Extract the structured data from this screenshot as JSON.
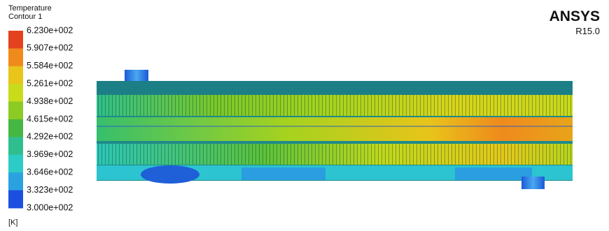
{
  "legend": {
    "title": [
      "Temperature",
      "Contour 1"
    ],
    "levels": [
      "6.230e+002",
      "5.907e+002",
      "5.584e+002",
      "5.261e+002",
      "4.938e+002",
      "4.615e+002",
      "4.292e+002",
      "3.969e+002",
      "3.646e+002",
      "3.323e+002",
      "3.000e+002"
    ],
    "colors": [
      "#e4411e",
      "#f08a1c",
      "#e9c41a",
      "#c8dc1c",
      "#8cca24",
      "#45b742",
      "#2fbf8e",
      "#2ccbc6",
      "#2aa2e0",
      "#1c4fe0"
    ],
    "unit": "[K]"
  },
  "brand": {
    "name": "ANSYS",
    "version": "R15.0"
  }
}
